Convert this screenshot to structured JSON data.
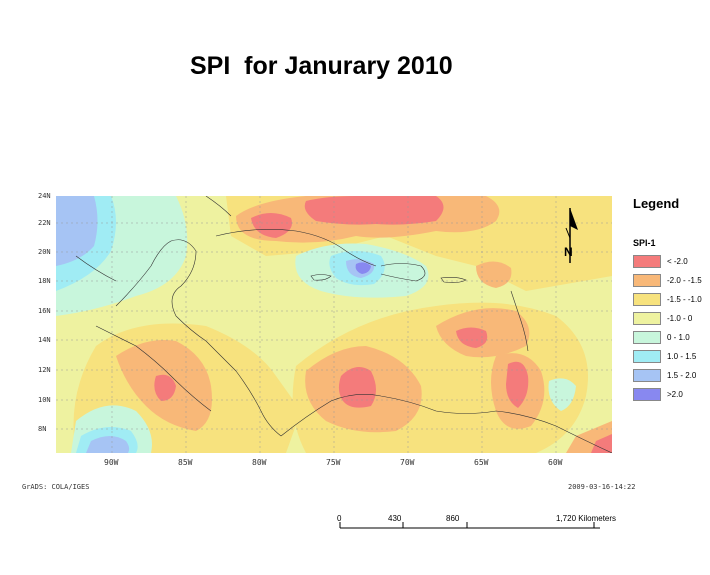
{
  "title": "SPI  for Janurary 2010",
  "legend": {
    "title": "Legend",
    "subtitle": "SPI-1",
    "items": [
      {
        "label": "< -2.0",
        "color": "#f47b7b"
      },
      {
        "label": "-2.0 - -1.5",
        "color": "#f8b878"
      },
      {
        "label": "-1.5 -  -1.0",
        "color": "#f7e27e"
      },
      {
        "label": "-1.0 - 0",
        "color": "#eef2a0"
      },
      {
        "label": "0 - 1.0",
        "color": "#c8f6dc"
      },
      {
        "label": "1.0 - 1.5",
        "color": "#a0ecf4"
      },
      {
        "label": "1.5 - 2.0",
        "color": "#a6c4f4"
      },
      {
        "label": ">2.0",
        "color": "#8888f0"
      }
    ]
  },
  "axes": {
    "latitudes": [
      "24N",
      "22N",
      "20N",
      "18N",
      "16N",
      "14N",
      "12N",
      "10N",
      "8N"
    ],
    "longitudes": [
      "90W",
      "85W",
      "80W",
      "75W",
      "70W",
      "65W",
      "60W"
    ]
  },
  "credit_left": "GrADS: COLA/IGES",
  "credit_right": "2009-03-16-14:22",
  "north_label": "N",
  "scale_bar": {
    "labels": [
      "0",
      "430",
      "860",
      "1,720 Kilometers"
    ]
  }
}
